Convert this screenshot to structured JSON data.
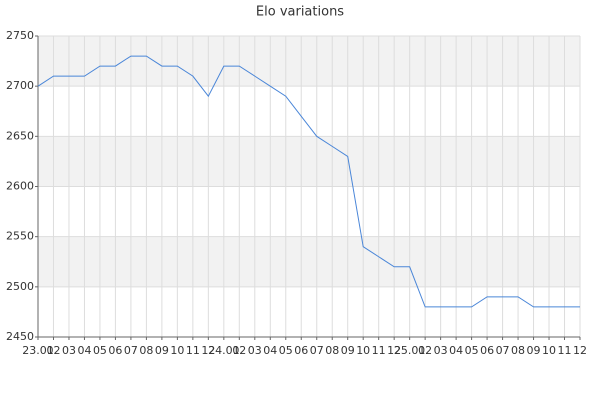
{
  "chart_data": {
    "type": "line",
    "title": "Elo variations",
    "categories": [
      "23.01",
      "02",
      "03",
      "04",
      "05",
      "06",
      "07",
      "08",
      "09",
      "10",
      "11",
      "12",
      "24.01",
      "02",
      "03",
      "04",
      "05",
      "06",
      "07",
      "08",
      "09",
      "10",
      "11",
      "12",
      "25.01",
      "02",
      "03",
      "04",
      "05",
      "06",
      "07",
      "08",
      "09",
      "10",
      "11",
      "12"
    ],
    "series": [
      {
        "name": "Elo",
        "color": "#4a86d8",
        "values": [
          2700,
          2710,
          2710,
          2710,
          2720,
          2720,
          2730,
          2730,
          2720,
          2720,
          2710,
          2690,
          2720,
          2720,
          2710,
          2700,
          2690,
          2670,
          2650,
          2640,
          2630,
          2540,
          2530,
          2520,
          2520,
          2480,
          2480,
          2480,
          2480,
          2490,
          2490,
          2490,
          2480,
          2480,
          2480,
          2480
        ]
      }
    ],
    "ylim": [
      2450,
      2750
    ],
    "yticks": [
      2450,
      2500,
      2550,
      2600,
      2650,
      2700,
      2750
    ],
    "grid": true
  }
}
